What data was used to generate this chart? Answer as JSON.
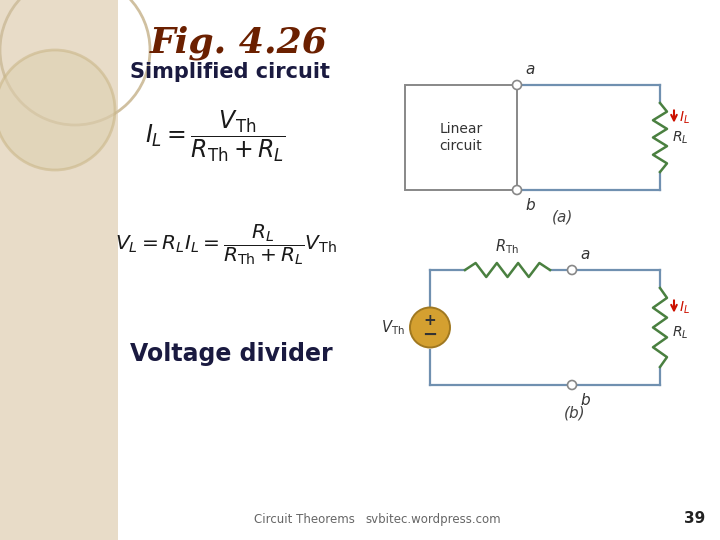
{
  "title": "Fig. 4.26",
  "subtitle": "Simplified circuit",
  "voltage_divider_label": "Voltage divider",
  "footer_left": "Circuit Theorems",
  "footer_right": "svbitec.wordpress.com",
  "footer_page": "39",
  "bg_left": "#e8dcc8",
  "bg_right": "#ffffff",
  "title_color": "#6b2000",
  "text_color": "#1a1a1a",
  "circuit_line_color": "#7090b0",
  "resistor_color": "#4a8040",
  "node_stroke": "#888888",
  "label_color": "#333333",
  "circuit_box_stroke": "#888888",
  "vth_fill": "#d4a030",
  "vth_stroke": "#a07820",
  "il_color": "#cc1100",
  "footer_color": "#666666"
}
